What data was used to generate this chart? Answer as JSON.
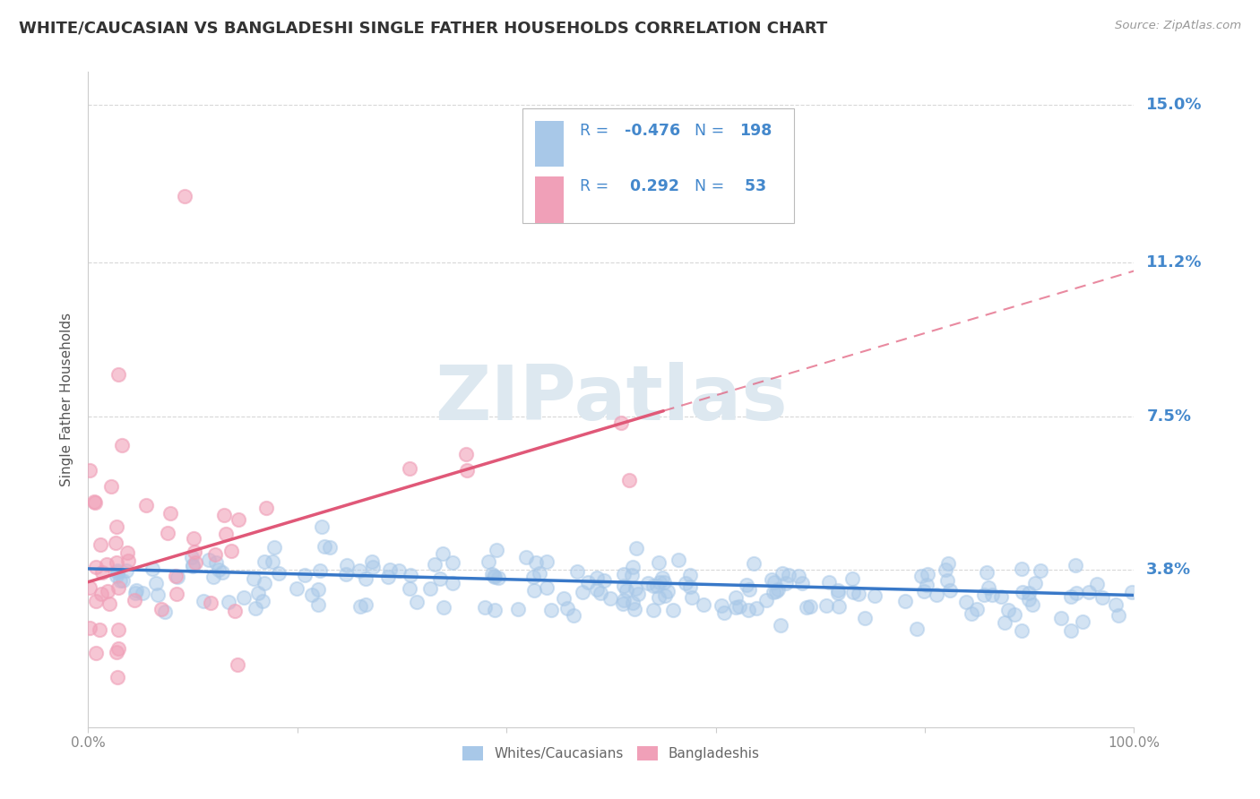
{
  "title": "WHITE/CAUCASIAN VS BANGLADESHI SINGLE FATHER HOUSEHOLDS CORRELATION CHART",
  "source": "Source: ZipAtlas.com",
  "ylabel": "Single Father Households",
  "xlim": [
    0,
    100
  ],
  "ylim": [
    0,
    15.8
  ],
  "yticks": [
    3.8,
    7.5,
    11.2,
    15.0
  ],
  "yticklabels": [
    "3.8%",
    "7.5%",
    "11.2%",
    "15.0%"
  ],
  "background_color": "#ffffff",
  "grid_color": "#c8c8c8",
  "title_color": "#333333",
  "axis_label_color": "#555555",
  "blue_scatter_color": "#a8c8e8",
  "pink_scatter_color": "#f0a0b8",
  "blue_line_color": "#3878c8",
  "pink_line_color": "#e05878",
  "right_label_color": "#4488cc",
  "legend_text_color": "#4488cc",
  "white_R": -0.476,
  "white_N": 198,
  "bangla_R": 0.292,
  "bangla_N": 53,
  "watermark_text": "ZIPatlas",
  "watermark_color": "#dde8f0",
  "blue_legend_patch": "#a8c8e8",
  "pink_legend_patch": "#f0a0b8"
}
